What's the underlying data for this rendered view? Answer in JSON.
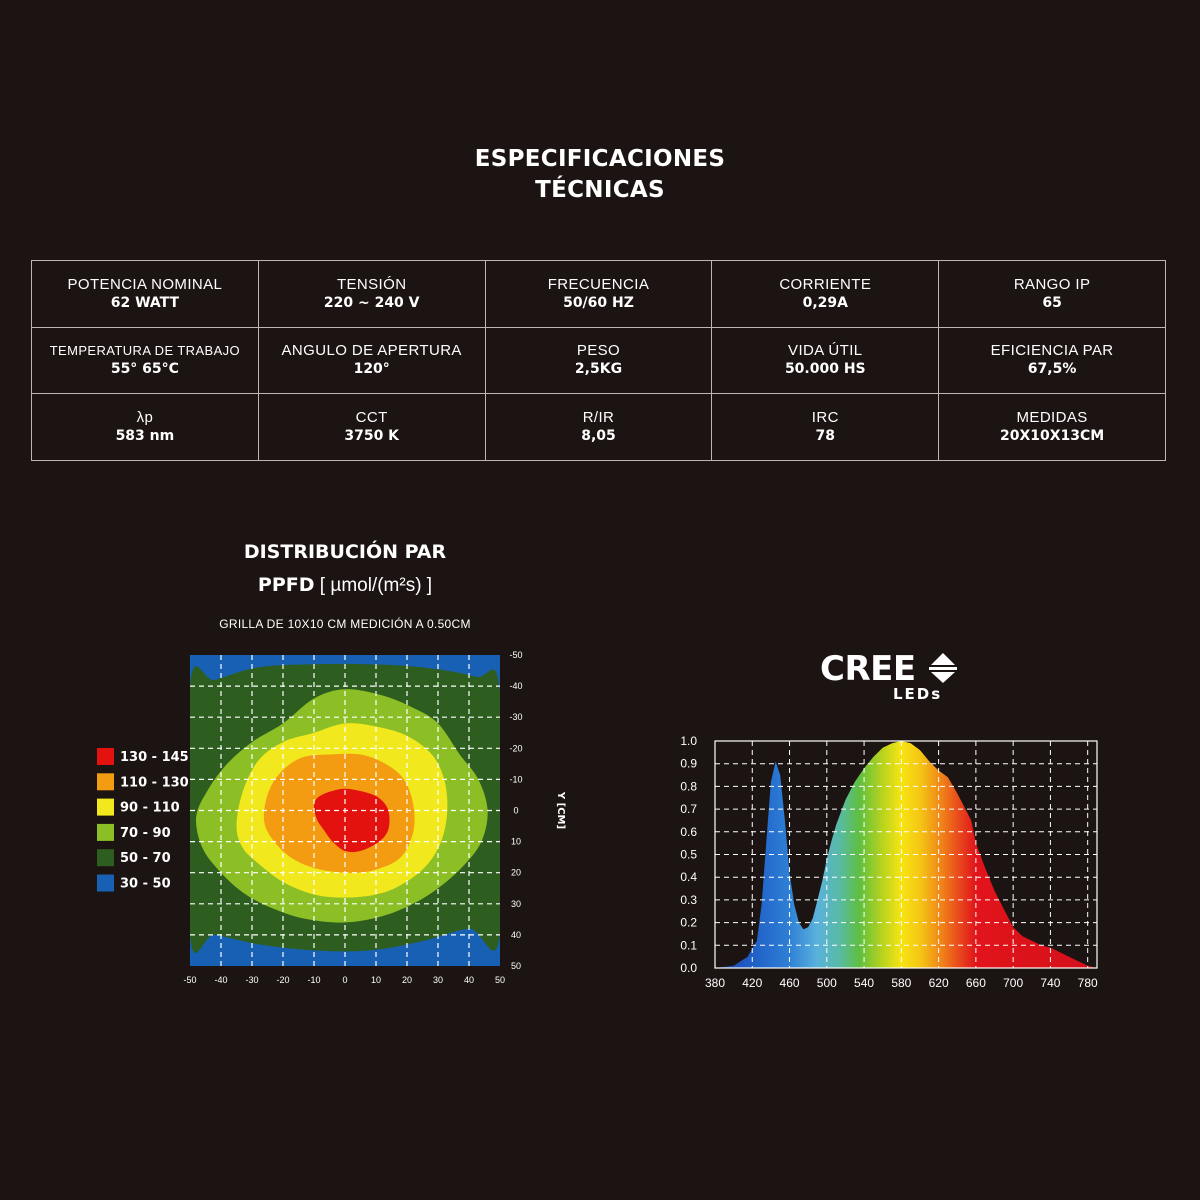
{
  "header": {
    "title_line1": "ESPECIFICACIONES",
    "title_line2": "TÉCNICAS"
  },
  "specs": [
    [
      {
        "label": "POTENCIA NOMINAL",
        "value": "62 WATT"
      },
      {
        "label": "TENSIÓN",
        "value": "220 ~ 240 V"
      },
      {
        "label": "FRECUENCIA",
        "value": "50/60 HZ"
      },
      {
        "label": "CORRIENTE",
        "value": "0,29A"
      },
      {
        "label": "RANGO IP",
        "value": "65"
      }
    ],
    [
      {
        "label": "TEMPERATURA DE TRABAJO",
        "value": "55° 65°C"
      },
      {
        "label": "ANGULO DE APERTURA",
        "value": "120°"
      },
      {
        "label": "PESO",
        "value": "2,5KG"
      },
      {
        "label": "VIDA ÚTIL",
        "value": "50.000 HS"
      },
      {
        "label": "EFICIENCIA PAR",
        "value": "67,5%"
      }
    ],
    [
      {
        "label": "λp",
        "value": "583 nm"
      },
      {
        "label": "CCT",
        "value": "3750 K"
      },
      {
        "label": "R/IR",
        "value": "8,05"
      },
      {
        "label": "IRC",
        "value": "78"
      },
      {
        "label": "MEDIDAS",
        "value": "20X10X13CM"
      }
    ]
  ],
  "ppfd": {
    "title": "DISTRIBUCIÓN PAR",
    "subtitle_bold": "PPFD",
    "subtitle_unit": " [ µmol/(m²s) ]",
    "note": "GRILLA DE 10X10 CM MEDICIÓN A 0.50CM"
  },
  "brand": {
    "name": "CREE",
    "sub": "LEDs"
  },
  "chart_data": [
    {
      "type": "heatmap",
      "xlabel": "",
      "ylabel": "Y [CM]",
      "x_ticks": [
        "-50",
        "-40",
        "-30",
        "-20",
        "-10",
        "0",
        "10",
        "20",
        "30",
        "40",
        "50"
      ],
      "y_ticks": [
        "-50",
        "-40",
        "-30",
        "-20",
        "-10",
        "0",
        "10",
        "20",
        "30",
        "40",
        "50"
      ],
      "xlim": [
        -50,
        50
      ],
      "ylim": [
        -50,
        50
      ],
      "grid": true,
      "legend_position": "left",
      "legend": [
        {
          "label": "130 - 145",
          "color": "#e3120f"
        },
        {
          "label": "110 - 130",
          "color": "#f39c12"
        },
        {
          "label": "90 - 110",
          "color": "#f2e81e"
        },
        {
          "label": "70 - 90",
          "color": "#8cbf26"
        },
        {
          "label": "50 - 70",
          "color": "#2e5e1f"
        },
        {
          "label": "30 - 50",
          "color": "#1760b4"
        }
      ],
      "zones": [
        {
          "range": "30 - 50",
          "color": "#1760b4",
          "points": [
            [
              -50,
              -50
            ],
            [
              50,
              -50
            ],
            [
              50,
              50
            ],
            [
              -50,
              50
            ]
          ]
        },
        {
          "range": "50 - 70",
          "color": "#2e5e1f",
          "points": [
            [
              -50,
              -40
            ],
            [
              -42,
              -42
            ],
            [
              -28,
              -46
            ],
            [
              -10,
              -47
            ],
            [
              8,
              -47
            ],
            [
              25,
              -46
            ],
            [
              42,
              -43
            ],
            [
              50,
              -38
            ],
            [
              50,
              40
            ],
            [
              40,
              38
            ],
            [
              25,
              42
            ],
            [
              8,
              45
            ],
            [
              -10,
              45
            ],
            [
              -28,
              43
            ],
            [
              -42,
              40
            ],
            [
              -50,
              40
            ]
          ]
        },
        {
          "range": "70 - 90",
          "color": "#8cbf26",
          "points": [
            [
              -48,
              2
            ],
            [
              -44,
              -7
            ],
            [
              -38,
              -15
            ],
            [
              -30,
              -22
            ],
            [
              -20,
              -28
            ],
            [
              -10,
              -36
            ],
            [
              0,
              -39
            ],
            [
              12,
              -37
            ],
            [
              22,
              -33
            ],
            [
              30,
              -28
            ],
            [
              37,
              -18
            ],
            [
              43,
              -10
            ],
            [
              46,
              0
            ],
            [
              44,
              10
            ],
            [
              38,
              18
            ],
            [
              30,
              25
            ],
            [
              22,
              30
            ],
            [
              12,
              34
            ],
            [
              0,
              36
            ],
            [
              -12,
              35
            ],
            [
              -22,
              32
            ],
            [
              -32,
              27
            ],
            [
              -40,
              20
            ],
            [
              -46,
              12
            ]
          ]
        },
        {
          "range": "90 - 110",
          "color": "#f2e81e",
          "points": [
            [
              -35,
              5
            ],
            [
              -33,
              -6
            ],
            [
              -28,
              -16
            ],
            [
              -20,
              -22
            ],
            [
              -10,
              -25
            ],
            [
              0,
              -28
            ],
            [
              10,
              -27
            ],
            [
              20,
              -24
            ],
            [
              28,
              -18
            ],
            [
              32,
              -10
            ],
            [
              33,
              0
            ],
            [
              31,
              10
            ],
            [
              26,
              18
            ],
            [
              18,
              24
            ],
            [
              10,
              27
            ],
            [
              0,
              28
            ],
            [
              -10,
              27
            ],
            [
              -20,
              23
            ],
            [
              -28,
              17
            ],
            [
              -33,
              12
            ]
          ]
        },
        {
          "range": "110 - 130",
          "color": "#f39c12",
          "points": [
            [
              -26,
              4
            ],
            [
              -25,
              -5
            ],
            [
              -21,
              -12
            ],
            [
              -14,
              -17
            ],
            [
              -5,
              -18
            ],
            [
              5,
              -18
            ],
            [
              13,
              -15
            ],
            [
              19,
              -10
            ],
            [
              22,
              -2
            ],
            [
              22,
              7
            ],
            [
              18,
              15
            ],
            [
              10,
              19
            ],
            [
              2,
              20
            ],
            [
              -8,
              19
            ],
            [
              -16,
              16
            ],
            [
              -22,
              11
            ]
          ]
        },
        {
          "range": "130 - 145",
          "color": "#e3120f",
          "points": [
            [
              -10,
              -1
            ],
            [
              -9,
              -4
            ],
            [
              -5,
              -6
            ],
            [
              0,
              -7
            ],
            [
              6,
              -6
            ],
            [
              11,
              -4
            ],
            [
              14,
              0
            ],
            [
              14,
              6
            ],
            [
              11,
              10
            ],
            [
              5,
              13
            ],
            [
              0,
              13
            ],
            [
              -4,
              10
            ],
            [
              -7,
              6
            ],
            [
              -9,
              3
            ]
          ]
        }
      ]
    },
    {
      "type": "area",
      "xlabel": "",
      "ylabel": "",
      "xlim": [
        380,
        790
      ],
      "ylim": [
        0,
        1.0
      ],
      "grid": true,
      "x_ticks": [
        380,
        420,
        460,
        500,
        540,
        580,
        620,
        660,
        700,
        740,
        780
      ],
      "y_ticks": [
        "0.0",
        "0.1",
        "0.2",
        "0.3",
        "0.4",
        "0.5",
        "0.6",
        "0.7",
        "0.8",
        "0.9",
        "1.0"
      ],
      "series": [
        {
          "x": [
            380,
            400,
            415,
            425,
            430,
            435,
            440,
            445,
            450,
            455,
            460,
            465,
            470,
            475,
            480,
            485,
            490,
            495,
            500,
            505,
            510,
            520,
            530,
            540,
            550,
            560,
            570,
            580,
            590,
            600,
            610,
            620,
            630,
            640,
            650,
            655,
            660,
            670,
            680,
            690,
            700,
            710,
            720,
            730,
            740,
            750,
            760,
            770,
            780,
            790
          ],
          "values": [
            0.0,
            0.01,
            0.05,
            0.12,
            0.28,
            0.55,
            0.82,
            0.91,
            0.85,
            0.65,
            0.42,
            0.28,
            0.2,
            0.17,
            0.18,
            0.22,
            0.3,
            0.38,
            0.48,
            0.56,
            0.63,
            0.74,
            0.82,
            0.88,
            0.93,
            0.97,
            0.99,
            1.0,
            0.99,
            0.96,
            0.91,
            0.87,
            0.84,
            0.77,
            0.69,
            0.65,
            0.55,
            0.44,
            0.34,
            0.26,
            0.18,
            0.14,
            0.12,
            0.1,
            0.09,
            0.07,
            0.05,
            0.03,
            0.01,
            0.0
          ]
        }
      ]
    }
  ]
}
